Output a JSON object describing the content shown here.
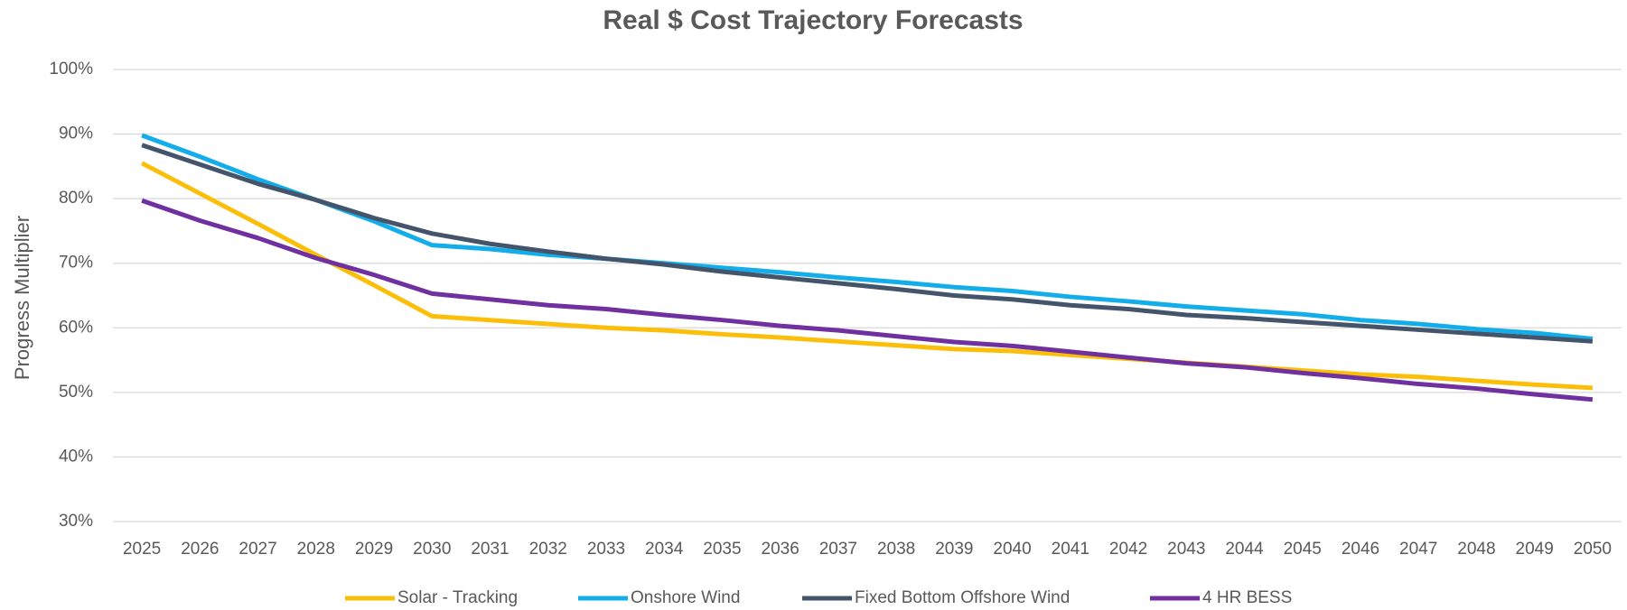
{
  "chart_data": {
    "type": "line",
    "title": "Real $ Cost Trajectory Forecasts",
    "y_label": "Progress Multiplier",
    "categories": [
      "2025",
      "2026",
      "2027",
      "2028",
      "2029",
      "2030",
      "2031",
      "2032",
      "2033",
      "2034",
      "2035",
      "2036",
      "2037",
      "2038",
      "2039",
      "2040",
      "2041",
      "2042",
      "2043",
      "2044",
      "2045",
      "2046",
      "2047",
      "2048",
      "2049",
      "2050"
    ],
    "series": [
      {
        "name": "Solar - Tracking",
        "color": "#fbbf0a",
        "values": [
          85.5,
          80.8,
          76.1,
          71.3,
          66.6,
          61.8,
          61.2,
          60.6,
          60,
          59.6,
          59,
          58.5,
          57.9,
          57.3,
          56.7,
          56.4,
          55.8,
          55.2,
          54.6,
          54,
          53.4,
          52.8,
          52.4,
          51.8,
          51.2,
          50.7
        ]
      },
      {
        "name": "Onshore Wind",
        "color": "#13aeea",
        "values": [
          89.8,
          86.5,
          83,
          79.8,
          76.5,
          72.8,
          72.2,
          71.3,
          70.7,
          70,
          69.3,
          68.6,
          67.8,
          67.1,
          66.3,
          65.7,
          64.8,
          64.1,
          63.3,
          62.7,
          62.1,
          61.2,
          60.6,
          59.8,
          59.2,
          58.3
        ]
      },
      {
        "name": "Fixed Bottom Offshore Wind",
        "color": "#44546a",
        "values": [
          88.3,
          85.3,
          82.3,
          79.8,
          77,
          74.6,
          73,
          71.8,
          70.7,
          69.8,
          68.7,
          67.8,
          66.9,
          66,
          65,
          64.4,
          63.5,
          62.9,
          62,
          61.5,
          60.9,
          60.3,
          59.7,
          59.1,
          58.5,
          57.9
        ]
      },
      {
        "name": "4 HR BESS",
        "color": "#7030a0",
        "values": [
          79.7,
          76.6,
          73.9,
          70.8,
          68.2,
          65.3,
          64.4,
          63.5,
          62.9,
          62,
          61.2,
          60.3,
          59.6,
          58.7,
          57.8,
          57.2,
          56.3,
          55.4,
          54.5,
          53.9,
          53,
          52.2,
          51.3,
          50.6,
          49.7,
          48.9
        ]
      }
    ],
    "ylim": [
      30,
      100
    ],
    "yticks": [
      {
        "value": 30,
        "label": "30%"
      },
      {
        "value": 40,
        "label": "40%"
      },
      {
        "value": 50,
        "label": "50%"
      },
      {
        "value": 60,
        "label": "60%"
      },
      {
        "value": 70,
        "label": "70%"
      },
      {
        "value": 80,
        "label": "80%"
      },
      {
        "value": 90,
        "label": "90%"
      },
      {
        "value": 100,
        "label": "100%"
      }
    ],
    "grid": true,
    "legend": "bottom"
  }
}
